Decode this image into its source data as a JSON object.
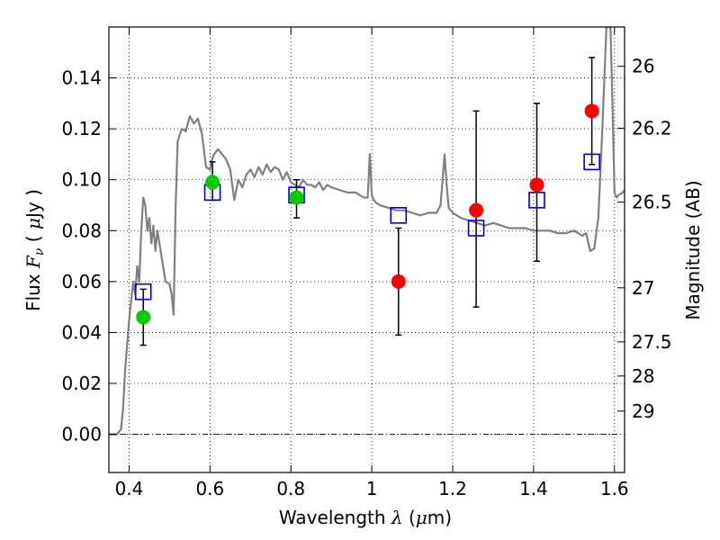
{
  "chart_data": {
    "type": "scatter",
    "xlabel": "Wavelength  λ (μm)",
    "ylabel": "Flux  Fν  ( μJy )",
    "ylabel_parts": {
      "prefix": "Flux  ",
      "sym": "F",
      "sub": "ν",
      "mid": "  ( ",
      "mu": "μ",
      "unit": "Jy )"
    },
    "xlabel_parts": {
      "prefix": "Wavelength  ",
      "sym": "λ",
      "mid": " (",
      "mu": "μ",
      "unit": "m)"
    },
    "y2label": "Magnitude (AB)",
    "xlim": [
      0.35,
      1.625
    ],
    "ylim": [
      -0.015,
      0.16
    ],
    "grid": true,
    "x_ticks": [
      {
        "v": 0.4,
        "label": "0.4"
      },
      {
        "v": 0.6,
        "label": "0.6"
      },
      {
        "v": 0.8,
        "label": "0.8"
      },
      {
        "v": 1.0,
        "label": "1"
      },
      {
        "v": 1.2,
        "label": "1.2"
      },
      {
        "v": 1.4,
        "label": "1.4"
      },
      {
        "v": 1.6,
        "label": "1.6"
      }
    ],
    "y_ticks": [
      {
        "v": 0.0,
        "label": "0.00"
      },
      {
        "v": 0.02,
        "label": "0.02"
      },
      {
        "v": 0.04,
        "label": "0.04"
      },
      {
        "v": 0.06,
        "label": "0.06"
      },
      {
        "v": 0.08,
        "label": "0.08"
      },
      {
        "v": 0.1,
        "label": "0.10"
      },
      {
        "v": 0.12,
        "label": "0.12"
      },
      {
        "v": 0.14,
        "label": "0.14"
      }
    ],
    "mag_ticks": [
      {
        "mag": 26,
        "label": "26"
      },
      {
        "mag": 26.2,
        "label": "26.2"
      },
      {
        "mag": 26.5,
        "label": "26.5"
      },
      {
        "mag": 27,
        "label": "27"
      },
      {
        "mag": 27.5,
        "label": "27.5"
      },
      {
        "mag": 28,
        "label": "28"
      },
      {
        "mag": 29,
        "label": "29"
      }
    ],
    "model_spectrum": {
      "color": "#808080",
      "x": [
        0.35,
        0.37,
        0.38,
        0.385,
        0.39,
        0.4,
        0.41,
        0.415,
        0.42,
        0.425,
        0.43,
        0.435,
        0.44,
        0.445,
        0.45,
        0.455,
        0.46,
        0.465,
        0.47,
        0.48,
        0.49,
        0.5,
        0.505,
        0.51,
        0.515,
        0.52,
        0.53,
        0.54,
        0.55,
        0.56,
        0.57,
        0.58,
        0.59,
        0.6,
        0.605,
        0.61,
        0.62,
        0.63,
        0.64,
        0.65,
        0.66,
        0.67,
        0.68,
        0.69,
        0.7,
        0.71,
        0.72,
        0.73,
        0.74,
        0.75,
        0.76,
        0.77,
        0.78,
        0.79,
        0.8,
        0.81,
        0.82,
        0.83,
        0.84,
        0.85,
        0.86,
        0.87,
        0.88,
        0.89,
        0.9,
        0.92,
        0.94,
        0.96,
        0.98,
        0.99,
        0.995,
        1.0,
        1.005,
        1.01,
        1.02,
        1.04,
        1.06,
        1.08,
        1.1,
        1.12,
        1.14,
        1.16,
        1.17,
        1.18,
        1.185,
        1.19,
        1.2,
        1.21,
        1.22,
        1.24,
        1.26,
        1.28,
        1.3,
        1.32,
        1.34,
        1.36,
        1.38,
        1.4,
        1.42,
        1.44,
        1.46,
        1.48,
        1.5,
        1.51,
        1.52,
        1.53,
        1.54,
        1.55,
        1.56,
        1.57,
        1.58,
        1.59,
        1.595,
        1.6,
        1.605,
        1.61,
        1.62,
        1.625
      ],
      "y": [
        0.0,
        0.0,
        0.002,
        0.01,
        0.025,
        0.045,
        0.06,
        0.055,
        0.066,
        0.06,
        0.08,
        0.093,
        0.09,
        0.08,
        0.085,
        0.075,
        0.082,
        0.072,
        0.08,
        0.07,
        0.06,
        0.059,
        0.055,
        0.047,
        0.09,
        0.115,
        0.12,
        0.119,
        0.125,
        0.122,
        0.124,
        0.118,
        0.105,
        0.104,
        0.108,
        0.11,
        0.112,
        0.11,
        0.108,
        0.104,
        0.092,
        0.1,
        0.097,
        0.102,
        0.104,
        0.101,
        0.105,
        0.102,
        0.106,
        0.103,
        0.105,
        0.104,
        0.1,
        0.103,
        0.099,
        0.098,
        0.097,
        0.1,
        0.098,
        0.098,
        0.097,
        0.099,
        0.096,
        0.098,
        0.097,
        0.096,
        0.095,
        0.095,
        0.093,
        0.093,
        0.11,
        0.094,
        0.092,
        0.091,
        0.09,
        0.089,
        0.088,
        0.088,
        0.087,
        0.086,
        0.087,
        0.087,
        0.09,
        0.11,
        0.098,
        0.089,
        0.087,
        0.086,
        0.085,
        0.084,
        0.083,
        0.082,
        0.083,
        0.082,
        0.081,
        0.081,
        0.081,
        0.08,
        0.08,
        0.08,
        0.079,
        0.079,
        0.08,
        0.079,
        0.078,
        0.079,
        0.072,
        0.073,
        0.085,
        0.12,
        0.16,
        0.16,
        0.13,
        0.095,
        0.093,
        0.094,
        0.095,
        0.096
      ]
    },
    "series": [
      {
        "marker": "square-open",
        "color": "#0000cc",
        "points": [
          {
            "x": 0.435,
            "y": 0.056
          },
          {
            "x": 0.606,
            "y": 0.095
          },
          {
            "x": 0.814,
            "y": 0.094
          },
          {
            "x": 1.066,
            "y": 0.086
          },
          {
            "x": 1.258,
            "y": 0.081
          },
          {
            "x": 1.408,
            "y": 0.092
          },
          {
            "x": 1.544,
            "y": 0.107
          }
        ]
      },
      {
        "marker": "circle",
        "color": "#00cc00",
        "points": [
          {
            "x": 0.435,
            "y": 0.046,
            "yerr_lo": 0.035,
            "yerr_hi": 0.057
          },
          {
            "x": 0.606,
            "y": 0.099,
            "yerr_lo": 0.092,
            "yerr_hi": 0.107
          },
          {
            "x": 0.814,
            "y": 0.093,
            "yerr_lo": 0.085,
            "yerr_hi": 0.1
          }
        ]
      },
      {
        "marker": "circle",
        "color": "#ff0000",
        "points": [
          {
            "x": 1.066,
            "y": 0.06,
            "yerr_lo": 0.039,
            "yerr_hi": 0.081
          },
          {
            "x": 1.258,
            "y": 0.088,
            "yerr_lo": 0.05,
            "yerr_hi": 0.127
          },
          {
            "x": 1.408,
            "y": 0.098,
            "yerr_lo": 0.068,
            "yerr_hi": 0.13
          },
          {
            "x": 1.544,
            "y": 0.127,
            "yerr_lo": 0.106,
            "yerr_hi": 0.148
          }
        ]
      }
    ]
  }
}
